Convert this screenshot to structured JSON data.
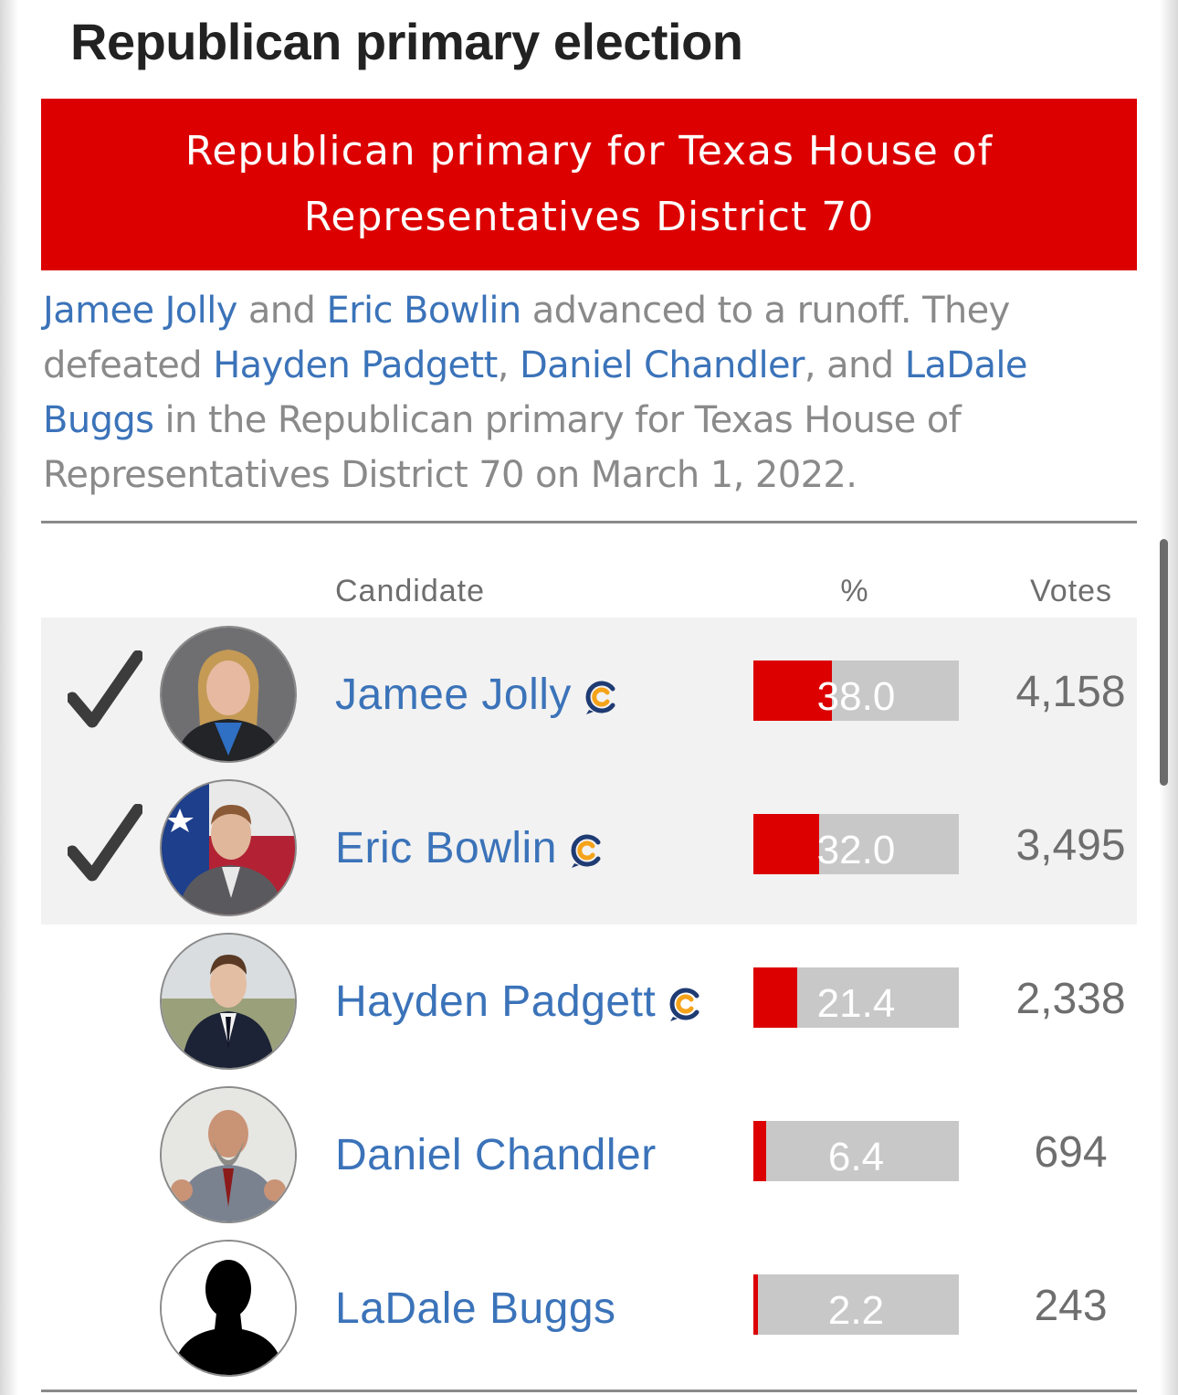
{
  "section_title": "Republican primary election",
  "race": {
    "title": "Republican primary for Texas House of Representatives District 70"
  },
  "summary": {
    "names": [
      "Jamee Jolly",
      "Eric Bowlin",
      "Hayden Padgett",
      "Daniel Chandler",
      "LaDale Buggs"
    ],
    "parts": [
      " and ",
      " advanced to a runoff. They defeated ",
      ", ",
      ", and ",
      " in the Republican primary for Texas House of Representatives District 70 on March 1, 2022."
    ]
  },
  "table": {
    "headers": {
      "candidate": "Candidate",
      "percent": "%",
      "votes": "Votes"
    },
    "rows": [
      {
        "name": "Jamee Jolly",
        "percent": "38.0",
        "votes": "4,158",
        "advanced": true,
        "ballotpedia_icon": true,
        "avatar": "photo-woman-blond"
      },
      {
        "name": "Eric Bowlin",
        "percent": "32.0",
        "votes": "3,495",
        "advanced": true,
        "ballotpedia_icon": true,
        "avatar": "photo-man-flag"
      },
      {
        "name": "Hayden Padgett",
        "percent": "21.4",
        "votes": "2,338",
        "advanced": false,
        "ballotpedia_icon": true,
        "avatar": "photo-man-outdoors"
      },
      {
        "name": "Daniel Chandler",
        "percent": "6.4",
        "votes": "694",
        "advanced": false,
        "ballotpedia_icon": false,
        "avatar": "photo-man-beard"
      },
      {
        "name": "LaDale Buggs",
        "percent": "2.2",
        "votes": "243",
        "advanced": false,
        "ballotpedia_icon": false,
        "avatar": "silhouette"
      }
    ]
  },
  "colors": {
    "republican_red": "#dc0000",
    "link_blue": "#3b73b9",
    "bar_gray": "#c8c8c8",
    "winner_row_bg": "#f2f2f2"
  },
  "icons": {
    "check": "check-icon",
    "ballotpedia": "ballotpedia-c-icon"
  }
}
